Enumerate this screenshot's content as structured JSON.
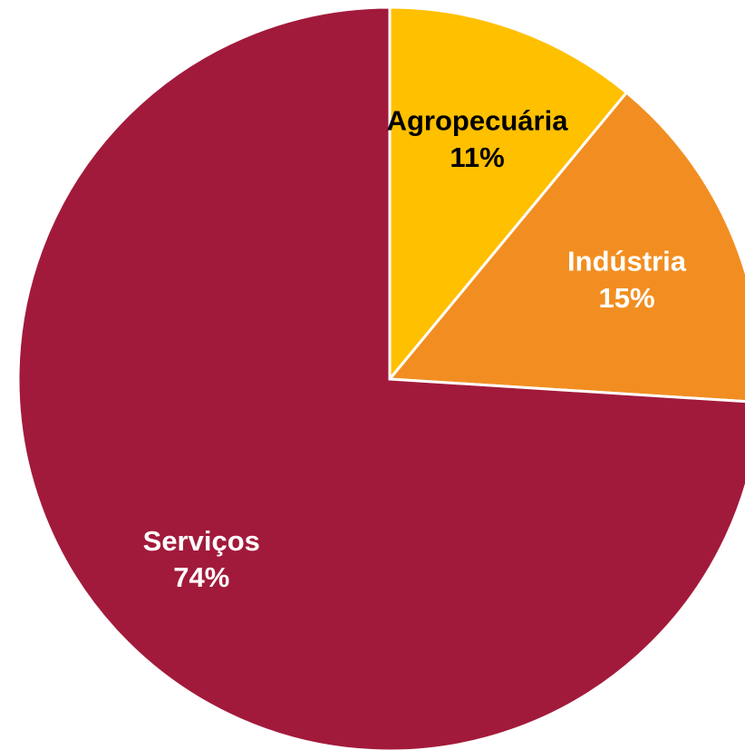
{
  "chart_data": {
    "type": "pie",
    "title": "",
    "legend": "none",
    "start_angle": "12 o'clock, clockwise",
    "slices": [
      {
        "label": "Agropecuária",
        "value": 11,
        "value_label": "11%",
        "color": "#FFC000",
        "label_color": "#000000"
      },
      {
        "label": "Indústria",
        "value": 15,
        "value_label": "15%",
        "color": "#F28E21",
        "label_color": "#FFFFFF"
      },
      {
        "label": "Serviços",
        "value": 74,
        "value_label": "74%",
        "color": "#A21A3B",
        "label_color": "#FFFFFF"
      }
    ]
  }
}
